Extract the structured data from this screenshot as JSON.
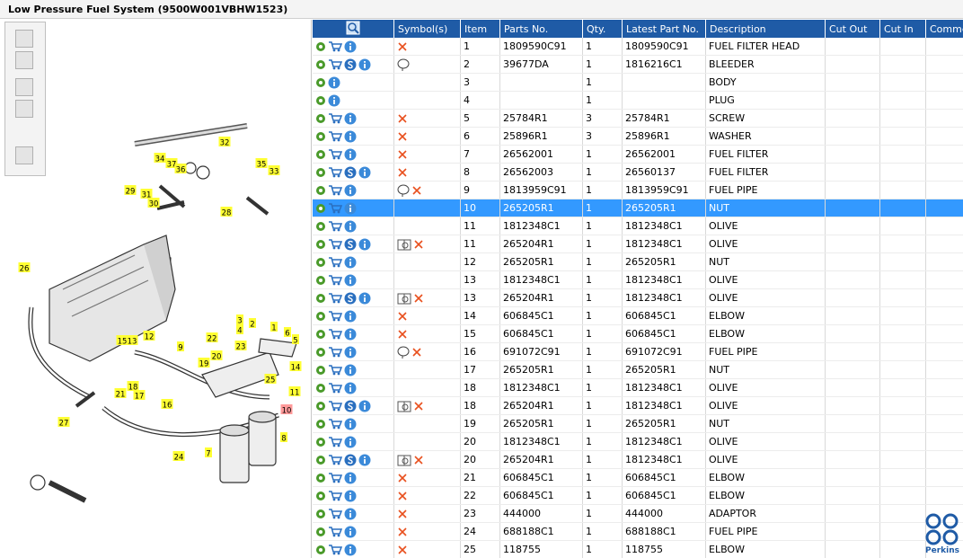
{
  "header": {
    "title": "Low Pressure Fuel System (9500W001VBHW1523)"
  },
  "table": {
    "columns": [
      null,
      "Symbol(s)",
      "Item",
      "Parts No.",
      "Qty.",
      "Latest Part No.",
      "Description",
      "Cut Out",
      "Cut In",
      "Comment"
    ],
    "selected_row": 9,
    "rows": [
      {
        "icons": [
          "gear",
          "cart",
          "info"
        ],
        "symbols": [
          "x"
        ],
        "cells": [
          "1",
          "1809590C91",
          "1",
          "1809590C91",
          "FUEL FILTER HEAD"
        ]
      },
      {
        "icons": [
          "gear",
          "cart",
          "s",
          "info"
        ],
        "symbols": [
          "balloon"
        ],
        "cells": [
          "2",
          "39677DA",
          "1",
          "1816216C1",
          "BLEEDER"
        ]
      },
      {
        "icons": [
          "gear",
          "info"
        ],
        "symbols": [],
        "cells": [
          "3",
          null,
          "1",
          null,
          "BODY"
        ]
      },
      {
        "icons": [
          "gear",
          "info"
        ],
        "symbols": [],
        "cells": [
          "4",
          null,
          "1",
          null,
          "PLUG"
        ]
      },
      {
        "icons": [
          "gear",
          "cart",
          "info"
        ],
        "symbols": [
          "x"
        ],
        "cells": [
          "5",
          "25784R1",
          "3",
          "25784R1",
          "SCREW"
        ]
      },
      {
        "icons": [
          "gear",
          "cart",
          "info"
        ],
        "symbols": [
          "x"
        ],
        "cells": [
          "6",
          "25896R1",
          "3",
          "25896R1",
          "WASHER"
        ]
      },
      {
        "icons": [
          "gear",
          "cart",
          "info"
        ],
        "symbols": [
          "x"
        ],
        "cells": [
          "7",
          "26562001",
          "1",
          "26562001",
          "FUEL FILTER"
        ]
      },
      {
        "icons": [
          "gear",
          "cart",
          "s",
          "info"
        ],
        "symbols": [
          "x"
        ],
        "cells": [
          "8",
          "26562003",
          "1",
          "26560137",
          "FUEL FILTER"
        ]
      },
      {
        "icons": [
          "gear",
          "cart",
          "info"
        ],
        "symbols": [
          "balloon",
          "x"
        ],
        "cells": [
          "9",
          "1813959C91",
          "1",
          "1813959C91",
          "FUEL PIPE"
        ]
      },
      {
        "icons": [
          "gear",
          "cart",
          "info"
        ],
        "symbols": [],
        "cells": [
          "10",
          "265205R1",
          "1",
          "265205R1",
          "NUT"
        ]
      },
      {
        "icons": [
          "gear",
          "cart",
          "info"
        ],
        "symbols": [],
        "cells": [
          "11",
          "1812348C1",
          "1",
          "1812348C1",
          "OLIVE"
        ]
      },
      {
        "icons": [
          "gear",
          "cart",
          "s",
          "info"
        ],
        "symbols": [
          "book",
          "x"
        ],
        "cells": [
          "11",
          "265204R1",
          "1",
          "1812348C1",
          "OLIVE"
        ]
      },
      {
        "icons": [
          "gear",
          "cart",
          "info"
        ],
        "symbols": [],
        "cells": [
          "12",
          "265205R1",
          "1",
          "265205R1",
          "NUT"
        ]
      },
      {
        "icons": [
          "gear",
          "cart",
          "info"
        ],
        "symbols": [],
        "cells": [
          "13",
          "1812348C1",
          "1",
          "1812348C1",
          "OLIVE"
        ]
      },
      {
        "icons": [
          "gear",
          "cart",
          "s",
          "info"
        ],
        "symbols": [
          "book",
          "x"
        ],
        "cells": [
          "13",
          "265204R1",
          "1",
          "1812348C1",
          "OLIVE"
        ]
      },
      {
        "icons": [
          "gear",
          "cart",
          "info"
        ],
        "symbols": [
          "x"
        ],
        "cells": [
          "14",
          "606845C1",
          "1",
          "606845C1",
          "ELBOW"
        ]
      },
      {
        "icons": [
          "gear",
          "cart",
          "info"
        ],
        "symbols": [
          "x"
        ],
        "cells": [
          "15",
          "606845C1",
          "1",
          "606845C1",
          "ELBOW"
        ]
      },
      {
        "icons": [
          "gear",
          "cart",
          "info"
        ],
        "symbols": [
          "balloon",
          "x"
        ],
        "cells": [
          "16",
          "691072C91",
          "1",
          "691072C91",
          "FUEL PIPE"
        ]
      },
      {
        "icons": [
          "gear",
          "cart",
          "info"
        ],
        "symbols": [],
        "cells": [
          "17",
          "265205R1",
          "1",
          "265205R1",
          "NUT"
        ]
      },
      {
        "icons": [
          "gear",
          "cart",
          "info"
        ],
        "symbols": [],
        "cells": [
          "18",
          "1812348C1",
          "1",
          "1812348C1",
          "OLIVE"
        ]
      },
      {
        "icons": [
          "gear",
          "cart",
          "s",
          "info"
        ],
        "symbols": [
          "book",
          "x"
        ],
        "cells": [
          "18",
          "265204R1",
          "1",
          "1812348C1",
          "OLIVE"
        ]
      },
      {
        "icons": [
          "gear",
          "cart",
          "info"
        ],
        "symbols": [],
        "cells": [
          "19",
          "265205R1",
          "1",
          "265205R1",
          "NUT"
        ]
      },
      {
        "icons": [
          "gear",
          "cart",
          "info"
        ],
        "symbols": [],
        "cells": [
          "20",
          "1812348C1",
          "1",
          "1812348C1",
          "OLIVE"
        ]
      },
      {
        "icons": [
          "gear",
          "cart",
          "s",
          "info"
        ],
        "symbols": [
          "book",
          "x"
        ],
        "cells": [
          "20",
          "265204R1",
          "1",
          "1812348C1",
          "OLIVE"
        ]
      },
      {
        "icons": [
          "gear",
          "cart",
          "info"
        ],
        "symbols": [
          "x"
        ],
        "cells": [
          "21",
          "606845C1",
          "1",
          "606845C1",
          "ELBOW"
        ]
      },
      {
        "icons": [
          "gear",
          "cart",
          "info"
        ],
        "symbols": [
          "x"
        ],
        "cells": [
          "22",
          "606845C1",
          "1",
          "606845C1",
          "ELBOW"
        ]
      },
      {
        "icons": [
          "gear",
          "cart",
          "info"
        ],
        "symbols": [
          "x"
        ],
        "cells": [
          "23",
          "444000",
          "1",
          "444000",
          "ADAPTOR"
        ]
      },
      {
        "icons": [
          "gear",
          "cart",
          "info"
        ],
        "symbols": [
          "x"
        ],
        "cells": [
          "24",
          "688188C1",
          "1",
          "688188C1",
          "FUEL PIPE"
        ]
      },
      {
        "icons": [
          "gear",
          "cart",
          "info"
        ],
        "symbols": [
          "x"
        ],
        "cells": [
          "25",
          "118755",
          "1",
          "118755",
          "ELBOW"
        ]
      }
    ]
  },
  "diagram": {
    "highlighted": "10",
    "callouts": [
      "32",
      "34",
      "37",
      "36",
      "35",
      "33",
      "29",
      "31",
      "30",
      "28",
      "26",
      "3",
      "2",
      "4",
      "1",
      "6",
      "5",
      "22",
      "23",
      "15",
      "13",
      "12",
      "9",
      "20",
      "19",
      "14",
      "18",
      "17",
      "21",
      "25",
      "11",
      "16",
      "10",
      "27",
      "24",
      "7",
      "8"
    ]
  },
  "logo": {
    "text": "Perkins"
  }
}
